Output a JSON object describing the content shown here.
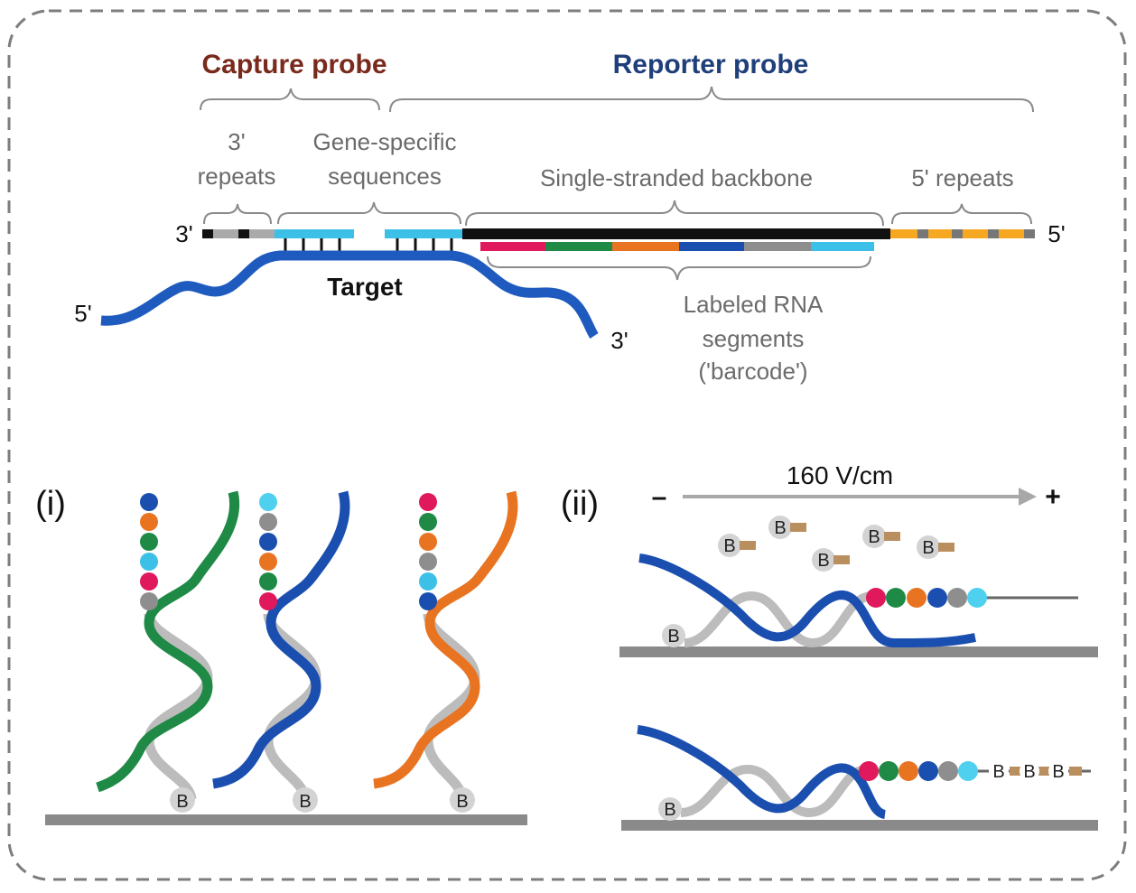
{
  "top": {
    "capture_probe": "Capture probe",
    "reporter_probe": "Reporter probe",
    "three_prime_repeats_line1": "3'",
    "three_prime_repeats_line2": "repeats",
    "gene_specific_line1": "Gene-specific",
    "gene_specific_line2": "sequences",
    "backbone": "Single-stranded backbone",
    "five_prime_repeats": "5' repeats",
    "left_end": "3'",
    "right_end": "5'",
    "target": "Target",
    "target_5": "5'",
    "target_3": "3'",
    "labeled_line1": "Labeled RNA",
    "labeled_line2": "segments",
    "labeled_line3": "('barcode')"
  },
  "panel_i": {
    "label": "(i)",
    "bead": "B"
  },
  "panel_ii": {
    "label": "(ii)",
    "field": "160 V/cm",
    "minus": "–",
    "plus": "+",
    "bead": "B"
  },
  "colors": {
    "capture_title": "#7a2a1c",
    "reporter_title": "#1f3f7a",
    "target_strand": "#1f5bbf",
    "cyan": "#3cc0e8",
    "backbone": "#111111",
    "repeat_orange": "#f7a823",
    "red": "#e0185c",
    "green": "#1e8a45",
    "orange": "#e87422",
    "blue": "#1a4fb0",
    "gray": "#8e8e8e",
    "light_blue": "#4fd0ee"
  }
}
